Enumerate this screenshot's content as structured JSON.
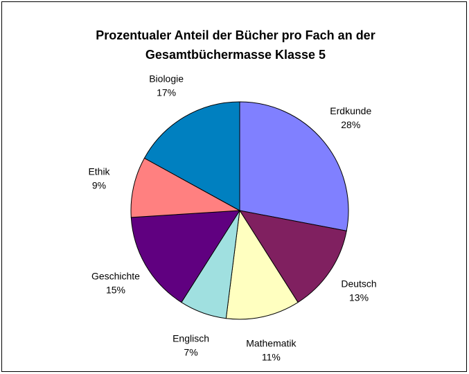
{
  "chart_data": {
    "type": "pie",
    "title": [
      "Prozentualer Anteil der Bücher pro Fach an der",
      "Gesamtbüchermasse Klasse 5"
    ],
    "categories": [
      "Erdkunde",
      "Deutsch",
      "Mathematik",
      "Englisch",
      "Geschichte",
      "Ethik",
      "Biologie"
    ],
    "values": [
      28,
      13,
      11,
      7,
      15,
      9,
      17
    ],
    "value_labels": [
      "28%",
      "13%",
      "11%",
      "7%",
      "15%",
      "9%",
      "17%"
    ],
    "colors": [
      "#8080ff",
      "#802060",
      "#ffffc0",
      "#a0e0e0",
      "#600080",
      "#ff8080",
      "#0080c0"
    ]
  }
}
